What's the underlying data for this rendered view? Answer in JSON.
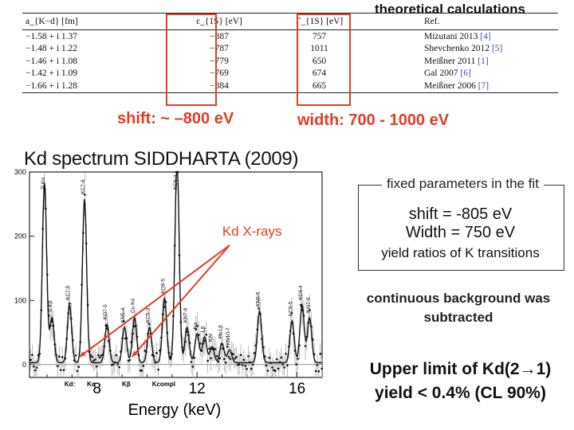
{
  "heading": "theoretical calculations",
  "table": {
    "headers": [
      "a_{K−d} [fm]",
      "ε_{1S} [eV]",
      "Γ_{1S} [eV]",
      "Ref."
    ],
    "rows": [
      {
        "a": "−1.58 + i 1.37",
        "eps": "−887",
        "gamma": "757",
        "ref_name": "Mizutani 2013",
        "ref_num": "[4]"
      },
      {
        "a": "−1.48 + i 1.22",
        "eps": "−787",
        "gamma": "1011",
        "ref_name": "Shevchenko 2012",
        "ref_num": "[5]"
      },
      {
        "a": "−1.46 + i 1.08",
        "eps": "−779",
        "gamma": "650",
        "ref_name": "Meißner 2011",
        "ref_num": "[1]"
      },
      {
        "a": "−1.42 + i 1.09",
        "eps": "−769",
        "gamma": "674",
        "ref_name": "Gal 2007",
        "ref_num": "[6]"
      },
      {
        "a": "−1.66 + i 1.28",
        "eps": "−884",
        "gamma": "665",
        "ref_name": "Meißner 2006",
        "ref_num": "[7]"
      }
    ]
  },
  "shift_note": "shift:  ~ –800 eV",
  "width_note": "width: 700 - 1000 eV",
  "fit_box": {
    "title": "fixed parameters in the fit",
    "shift": "shift = -805 eV",
    "width": "Width = 750 eV",
    "ratios": "yield ratios of K transitions"
  },
  "background_note": [
    "continuous background was",
    "subtracted"
  ],
  "upper_limit": [
    "Upper limit of Kd(2→1)",
    "yield < 0.4% (CL 90%)"
  ],
  "colors": {
    "accent": "#e53c24",
    "data": "#111111"
  },
  "chart_data": {
    "type": "line",
    "title": "Kd spectrum SIDDHARTA (2009)",
    "xlabel": "Energy (keV)",
    "ylabel": "",
    "xlim": [
      5.3,
      17.0
    ],
    "ylim": [
      -20,
      300
    ],
    "xticks": [
      8,
      12,
      16
    ],
    "yticks": [
      0,
      100,
      200,
      300
    ],
    "annotation": "Kd X-rays",
    "annotation_targets_x": [
      7.3,
      9.4
    ],
    "peaks": [
      {
        "x": 5.9,
        "height": 280,
        "label": "Ti Kα"
      },
      {
        "x": 6.2,
        "height": 70,
        "label": "Ti Kβ"
      },
      {
        "x": 6.9,
        "height": 90,
        "label": "KC7-5"
      },
      {
        "x": 7.5,
        "height": 255,
        "label": "KC7-6"
      },
      {
        "x": 8.4,
        "height": 60,
        "label": "KO7-5"
      },
      {
        "x": 9.1,
        "height": 55,
        "label": "KN5-4"
      },
      {
        "x": 9.5,
        "height": 70,
        "label": "Cu Kα"
      },
      {
        "x": 10.1,
        "height": 55,
        "label": "KC5-3"
      },
      {
        "x": 10.7,
        "height": 100,
        "label": "KO6-5"
      },
      {
        "x": 11.2,
        "height": 315,
        "label": "KC6-4"
      },
      {
        "x": 11.6,
        "height": 55,
        "label": "KN7-6"
      },
      {
        "x": 12.0,
        "height": 45,
        "label": "Kα"
      },
      {
        "x": 12.3,
        "height": 40,
        "label": "Lβ"
      },
      {
        "x": 12.6,
        "height": 25,
        "label": "KAl"
      },
      {
        "x": 13.0,
        "height": 30,
        "label": "Pb Lβ"
      },
      {
        "x": 13.3,
        "height": 20,
        "label": "KN10-7"
      },
      {
        "x": 14.5,
        "height": 80,
        "label": "KN6-5"
      },
      {
        "x": 15.8,
        "height": 65,
        "label": "KC9-5"
      },
      {
        "x": 16.2,
        "height": 90,
        "label": "KC6-4"
      },
      {
        "x": 16.5,
        "height": 70,
        "label": "KAl7-6"
      }
    ],
    "kd_labels": [
      {
        "x": 6.7,
        "label": "Kd:"
      },
      {
        "x": 7.6,
        "label": "Kα"
      },
      {
        "x": 9.0,
        "label": "Kβ"
      },
      {
        "x": 10.2,
        "label": "Kcompl"
      }
    ]
  }
}
